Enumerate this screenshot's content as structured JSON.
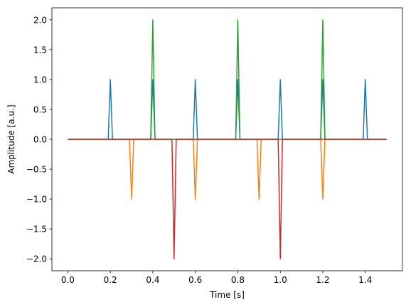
{
  "chart_data": {
    "type": "line",
    "title": "",
    "xlabel": "Time [s]",
    "ylabel": "Amplitude [a.u.]",
    "xlim": [
      -0.075,
      1.575
    ],
    "ylim": [
      -2.2,
      2.2
    ],
    "xticks": [
      0.0,
      0.2,
      0.4,
      0.6,
      0.8,
      1.0,
      1.2,
      1.4
    ],
    "xtick_labels": [
      "0.0",
      "0.2",
      "0.4",
      "0.6",
      "0.8",
      "1.0",
      "1.2",
      "1.4"
    ],
    "yticks": [
      -2.0,
      -1.5,
      -1.0,
      -0.5,
      0.0,
      0.5,
      1.0,
      1.5,
      2.0
    ],
    "ytick_labels": [
      "−2.0",
      "−1.5",
      "−1.0",
      "−0.5",
      "0.0",
      "0.5",
      "1.0",
      "1.5",
      "2.0"
    ],
    "grid": false,
    "legend": "none",
    "sample_step": 0.01,
    "x_range": [
      0.0,
      1.5
    ],
    "series": [
      {
        "color": "#1f77b4",
        "spikes": [
          [
            0.2,
            1
          ],
          [
            0.4,
            1
          ],
          [
            0.6,
            1
          ],
          [
            0.8,
            1
          ],
          [
            1.0,
            1
          ],
          [
            1.2,
            1
          ],
          [
            1.4,
            1
          ]
        ]
      },
      {
        "color": "#ff7f0e",
        "spikes": [
          [
            0.3,
            -1
          ],
          [
            0.6,
            -1
          ],
          [
            0.9,
            -1
          ],
          [
            1.2,
            -1
          ]
        ]
      },
      {
        "color": "#2ca02c",
        "spikes": [
          [
            0.4,
            2
          ],
          [
            0.8,
            2
          ],
          [
            1.2,
            2
          ]
        ]
      },
      {
        "color": "#d62728",
        "spikes": [
          [
            0.5,
            -2
          ],
          [
            1.0,
            -2
          ]
        ]
      }
    ]
  }
}
